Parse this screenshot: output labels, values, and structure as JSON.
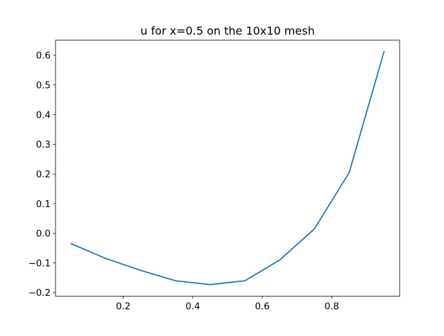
{
  "chart_data": {
    "type": "line",
    "title": "u for x=0.5 on the 10x10 mesh",
    "xlabel": "",
    "ylabel": "",
    "x": [
      0.05,
      0.15,
      0.25,
      0.35,
      0.45,
      0.55,
      0.65,
      0.75,
      0.85,
      0.95
    ],
    "series": [
      {
        "values": [
          -0.035,
          -0.085,
          -0.125,
          -0.16,
          -0.173,
          -0.16,
          -0.09,
          0.015,
          0.205,
          0.612
        ],
        "color": "#1f77b4"
      }
    ],
    "xlim": [
      0.005,
      0.995
    ],
    "ylim": [
      -0.2122,
      0.6512
    ],
    "xticks": [
      {
        "value": 0.2,
        "label": "0.2"
      },
      {
        "value": 0.4,
        "label": "0.4"
      },
      {
        "value": 0.6,
        "label": "0.6"
      },
      {
        "value": 0.8,
        "label": "0.8"
      }
    ],
    "yticks": [
      {
        "value": -0.2,
        "label": "−0.2"
      },
      {
        "value": -0.1,
        "label": "−0.1"
      },
      {
        "value": 0.0,
        "label": "0.0"
      },
      {
        "value": 0.1,
        "label": "0.1"
      },
      {
        "value": 0.2,
        "label": "0.2"
      },
      {
        "value": 0.3,
        "label": "0.3"
      },
      {
        "value": 0.4,
        "label": "0.4"
      },
      {
        "value": 0.5,
        "label": "0.5"
      },
      {
        "value": 0.6,
        "label": "0.6"
      }
    ],
    "grid": false,
    "legend": "none"
  }
}
